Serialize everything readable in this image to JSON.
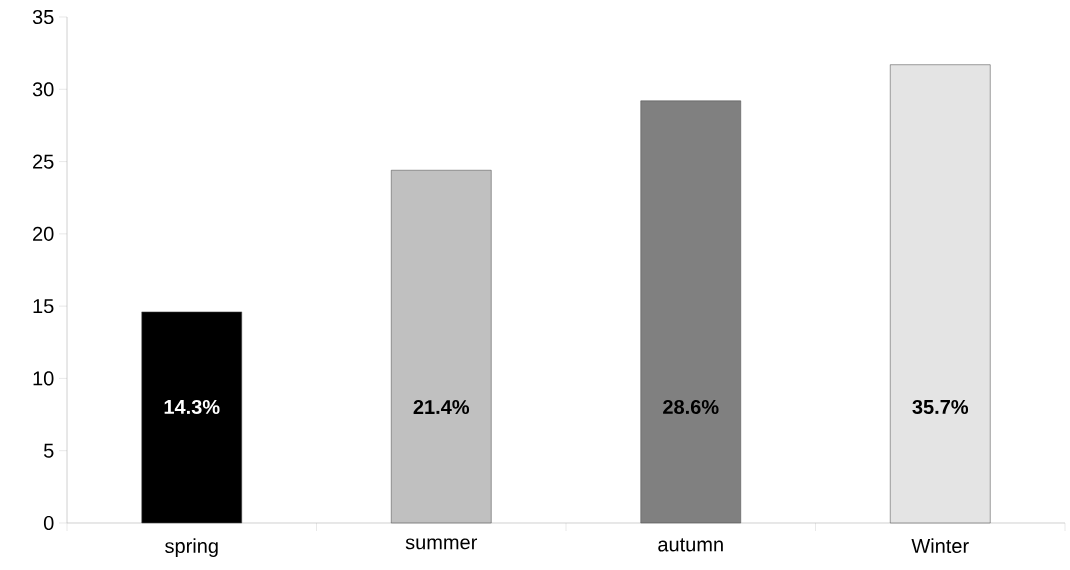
{
  "chart_data": {
    "type": "bar",
    "categories": [
      "spring",
      "summer",
      "autumn",
      "Winter"
    ],
    "values": [
      14.6,
      24.4,
      29.2,
      31.7
    ],
    "colors": [
      "#000000",
      "#c0c0c0",
      "#808080",
      "#e4e4e4"
    ],
    "annotations": [
      "14.3%",
      "21.4%",
      "28.6%",
      "35.7%"
    ],
    "ylim": [
      0,
      35
    ],
    "yticks": [
      0,
      5,
      10,
      15,
      20,
      25,
      30,
      35
    ],
    "grid": false
  }
}
